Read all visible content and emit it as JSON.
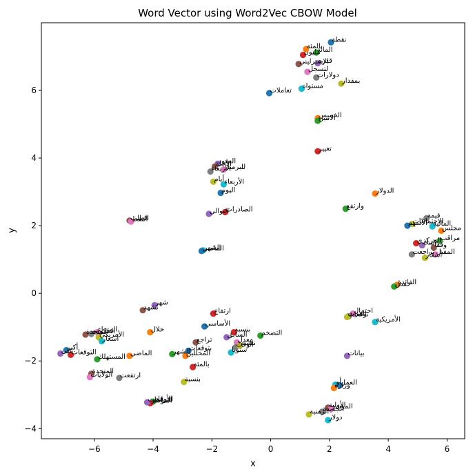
{
  "chart_data": {
    "type": "scatter",
    "title": "Word Vector using Word2Vec CBOW Model",
    "xlabel": "x",
    "ylabel": "y",
    "xlim": [
      -7.8,
      6.6
    ],
    "ylim": [
      -4.3,
      8.0
    ],
    "xticks": [
      -6,
      -4,
      -2,
      0,
      2,
      4,
      6
    ],
    "yticks": [
      -4,
      -2,
      0,
      2,
      4,
      6
    ],
    "grid": false,
    "palette": [
      "#1f77b4",
      "#ff7f0e",
      "#2ca02c",
      "#d62728",
      "#9467bd",
      "#8c564b",
      "#e377c2",
      "#7f7f7f",
      "#bcbd22",
      "#17becf"
    ],
    "points": [
      {
        "word": "نقطة",
        "x": 2.05,
        "y": 7.42
      },
      {
        "word": "بالمئة",
        "x": 1.2,
        "y": 7.22
      },
      {
        "word": "المائة",
        "x": 1.55,
        "y": 7.12
      },
      {
        "word": "مليون",
        "x": 1.1,
        "y": 7.05
      },
      {
        "word": "قدره",
        "x": 1.6,
        "y": 6.8
      },
      {
        "word": "الإسترليني",
        "x": 0.95,
        "y": 6.78
      },
      {
        "word": "لتسجل",
        "x": 1.25,
        "y": 6.55
      },
      {
        "word": "دولارات",
        "x": 1.55,
        "y": 6.38
      },
      {
        "word": "بمقدار",
        "x": 2.4,
        "y": 6.2
      },
      {
        "word": "مستواه",
        "x": 1.05,
        "y": 6.05
      },
      {
        "word": "تعاملات",
        "x": -0.05,
        "y": 5.92
      },
      {
        "word": "الخميس",
        "x": 1.6,
        "y": 5.18
      },
      {
        "word": "الاثنين",
        "x": 1.6,
        "y": 5.1
      },
      {
        "word": "تغيير",
        "x": 1.6,
        "y": 4.2
      },
      {
        "word": "العقود",
        "x": -1.8,
        "y": 3.83
      },
      {
        "word": "الآجلة",
        "x": -1.9,
        "y": 3.75
      },
      {
        "word": "للبرميل",
        "x": -1.6,
        "y": 3.66
      },
      {
        "word": "الأربعاء",
        "x": -2.05,
        "y": 3.6
      },
      {
        "word": "أيام",
        "x": -1.95,
        "y": 3.3
      },
      {
        "word": "الأربعاء",
        "x": -1.6,
        "y": 3.22
      },
      {
        "word": "اليوم",
        "x": -1.7,
        "y": 2.97
      },
      {
        "word": "الدولار",
        "x": 3.55,
        "y": 2.95
      },
      {
        "word": "وارتفع",
        "x": 2.55,
        "y": 2.5
      },
      {
        "word": "الصادرات",
        "x": -1.55,
        "y": 2.4
      },
      {
        "word": "التوالي",
        "x": -2.1,
        "y": 2.35
      },
      {
        "word": "الطلب",
        "x": -4.8,
        "y": 2.15
      },
      {
        "word": "النفط",
        "x": -4.75,
        "y": 2.12
      },
      {
        "word": "قيمة",
        "x": 5.3,
        "y": 2.22
      },
      {
        "word": "الاجتماعات",
        "x": 4.8,
        "y": 2.05
      },
      {
        "word": "المالية",
        "x": 5.5,
        "y": 1.98
      },
      {
        "word": "الأسهم",
        "x": 4.65,
        "y": 2.0
      },
      {
        "word": "مجلس",
        "x": 5.8,
        "y": 1.85
      },
      {
        "word": "مراقب",
        "x": 5.75,
        "y": 1.55
      },
      {
        "word": "المركزي",
        "x": 4.95,
        "y": 1.48
      },
      {
        "word": "البنك",
        "x": 5.15,
        "y": 1.42
      },
      {
        "word": "وفقا",
        "x": 5.55,
        "y": 1.35
      },
      {
        "word": "المقبل",
        "x": 5.6,
        "y": 1.15
      },
      {
        "word": "تراجعت",
        "x": 4.8,
        "y": 1.15
      },
      {
        "word": "أسعار",
        "x": 5.25,
        "y": 1.05
      },
      {
        "word": "الشهر",
        "x": -2.3,
        "y": 1.27
      },
      {
        "word": "الماضي",
        "x": -2.35,
        "y": 1.25
      },
      {
        "word": "الفائدة",
        "x": 4.3,
        "y": 0.25
      },
      {
        "word": "خفض",
        "x": 4.2,
        "y": 0.2
      },
      {
        "word": "ارتفاع",
        "x": -1.95,
        "y": -0.6
      },
      {
        "word": "شهر",
        "x": -3.95,
        "y": -0.35
      },
      {
        "word": "نشهد",
        "x": -4.35,
        "y": -0.5
      },
      {
        "word": "احتمال",
        "x": 2.8,
        "y": -0.6
      },
      {
        "word": "المزيد",
        "x": 2.65,
        "y": -0.68
      },
      {
        "word": "توقعات",
        "x": 2.6,
        "y": -0.7
      },
      {
        "word": "الأمريكية",
        "x": 3.55,
        "y": -0.85
      },
      {
        "word": "الأساسي",
        "x": -2.25,
        "y": -0.98
      },
      {
        "word": "خلال",
        "x": -4.1,
        "y": -1.15
      },
      {
        "word": "التضخم",
        "x": -0.35,
        "y": -1.25
      },
      {
        "word": "بنسبة",
        "x": -1.25,
        "y": -1.15
      },
      {
        "word": "السابق",
        "x": -1.5,
        "y": -1.3
      },
      {
        "word": "تراجع",
        "x": -2.55,
        "y": -1.45
      },
      {
        "word": "معدل",
        "x": -1.15,
        "y": -1.45
      },
      {
        "word": "الوقت",
        "x": -1.2,
        "y": -1.6
      },
      {
        "word": "نفسه",
        "x": -1.05,
        "y": -1.55
      },
      {
        "word": "سنويا",
        "x": -1.35,
        "y": -1.75
      },
      {
        "word": "بتوقعات",
        "x": -2.8,
        "y": -1.7
      },
      {
        "word": "المحللين",
        "x": -2.9,
        "y": -1.85
      },
      {
        "word": "الشهر",
        "x": -3.35,
        "y": -1.8
      },
      {
        "word": "بالمئة",
        "x": -2.65,
        "y": -2.18
      },
      {
        "word": "بيانات",
        "x": 2.6,
        "y": -1.85
      },
      {
        "word": "المتحدة",
        "x": -6.3,
        "y": -1.22
      },
      {
        "word": "الوزراء",
        "x": -5.9,
        "y": -1.15
      },
      {
        "word": "الحكومة",
        "x": -6.1,
        "y": -1.2
      },
      {
        "word": "الأمريكي",
        "x": -5.85,
        "y": -1.3
      },
      {
        "word": "أسعار",
        "x": -5.75,
        "y": -1.42
      },
      {
        "word": "أكبر",
        "x": -6.95,
        "y": -1.68
      },
      {
        "word": "الماضي",
        "x": -4.8,
        "y": -1.85
      },
      {
        "word": "المستهلك",
        "x": -5.9,
        "y": -1.95
      },
      {
        "word": "التوقعات",
        "x": -6.8,
        "y": -1.82
      },
      {
        "word": "على",
        "x": -7.15,
        "y": -1.78
      },
      {
        "word": "المتحدة",
        "x": -6.1,
        "y": -2.38
      },
      {
        "word": "الولايات",
        "x": -6.15,
        "y": -2.48
      },
      {
        "word": "ارتفعت",
        "x": -5.15,
        "y": -2.5
      },
      {
        "word": "بنسبة",
        "x": -2.95,
        "y": -2.62
      },
      {
        "word": "أو",
        "x": 2.2,
        "y": -2.7
      },
      {
        "word": "العمل",
        "x": 2.35,
        "y": -2.72
      },
      {
        "word": "وزارة",
        "x": 2.15,
        "y": -2.8
      },
      {
        "word": "الأرقام",
        "x": -4.0,
        "y": -3.2
      },
      {
        "word": "المؤشر",
        "x": -4.1,
        "y": -3.25
      },
      {
        "word": "للتوقعات",
        "x": -4.2,
        "y": -3.22
      },
      {
        "word": "الأولية",
        "x": 1.95,
        "y": -3.38
      },
      {
        "word": "المؤشر",
        "x": 2.05,
        "y": -3.42
      },
      {
        "word": "الجديدة",
        "x": 1.75,
        "y": -3.5
      },
      {
        "word": "الزمنية",
        "x": 1.3,
        "y": -3.58
      },
      {
        "word": "دولار",
        "x": 1.95,
        "y": -3.75
      }
    ]
  }
}
